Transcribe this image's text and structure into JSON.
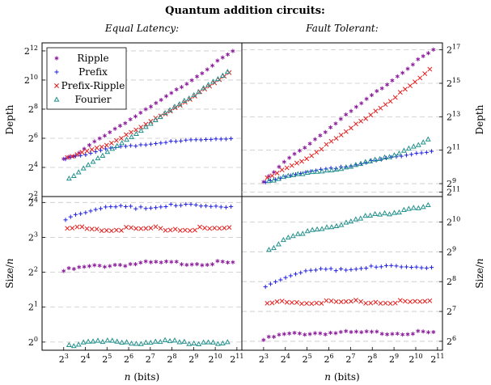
{
  "title": "Quantum addition circuits:",
  "colors": {
    "Ripple": "#8b1a9b",
    "Prefix": "#1f1fe0",
    "Prefix-Ripple": "#e51c1c",
    "Fourier": "#22908c",
    "grid": "#c8c8c8"
  },
  "chart_data": [
    {
      "type": "scatter",
      "panel": "equal-latency-depth",
      "subtitle": "Equal Latency:",
      "xlabel": "",
      "ylabel": "Depth",
      "xscale": "log2",
      "yscale": "log2",
      "xlim": [
        4,
        2400
      ],
      "ylim": [
        4,
        6000
      ],
      "yticks": [
        {
          "v": 4,
          "l": "2^2"
        },
        {
          "v": 16,
          "l": "2^4"
        },
        {
          "v": 64,
          "l": "2^6"
        },
        {
          "v": 256,
          "l": "2^8"
        },
        {
          "v": 1024,
          "l": "2^10"
        },
        {
          "v": 4096,
          "l": "2^12"
        }
      ],
      "legend": "top-left",
      "series": [
        {
          "name": "Ripple",
          "marker": "star",
          "x": [
            8,
            12,
            16,
            32,
            64,
            128,
            256,
            512,
            1024,
            1800
          ],
          "y": [
            24,
            28,
            40,
            80,
            150,
            280,
            550,
            1100,
            2300,
            4000
          ]
        },
        {
          "name": "Prefix",
          "marker": "plus",
          "x": [
            8,
            12,
            16,
            32,
            64,
            128,
            256,
            512,
            1024,
            1800
          ],
          "y": [
            24,
            28,
            30,
            38,
            44,
            50,
            54,
            58,
            62,
            64
          ]
        },
        {
          "name": "Prefix-Ripple",
          "marker": "cross",
          "x": [
            8,
            12,
            16,
            32,
            64,
            128,
            256,
            512,
            1024,
            1800
          ],
          "y": [
            24,
            28,
            34,
            48,
            78,
            140,
            250,
            470,
            900,
            1600
          ]
        },
        {
          "name": "Fourier",
          "marker": "triangle",
          "x": [
            8,
            12,
            16,
            32,
            64,
            128,
            256,
            512,
            1024,
            1800
          ],
          "y": [
            8,
            12,
            16,
            32,
            64,
            128,
            256,
            512,
            1024,
            1800
          ]
        }
      ]
    },
    {
      "type": "scatter",
      "panel": "fault-tolerant-depth",
      "subtitle": "Fault Tolerant:",
      "xlabel": "",
      "ylabel": "Depth",
      "xscale": "log2",
      "yscale": "log2",
      "xlim": [
        4,
        2400
      ],
      "ylim": [
        300,
        175000
      ],
      "yticks": [
        {
          "v": 512,
          "l": "2^9"
        },
        {
          "v": 2048,
          "l": "2^11"
        },
        {
          "v": 8192,
          "l": "2^13"
        },
        {
          "v": 32768,
          "l": "2^15"
        },
        {
          "v": 131072,
          "l": "2^17"
        }
      ],
      "series": [
        {
          "name": "Ripple",
          "marker": "star",
          "x": [
            8,
            12,
            16,
            32,
            64,
            128,
            256,
            512,
            1024,
            1800
          ],
          "y": [
            550,
            900,
            1300,
            2500,
            5000,
            10000,
            20000,
            40000,
            80000,
            130000
          ]
        },
        {
          "name": "Prefix",
          "marker": "plus",
          "x": [
            8,
            12,
            16,
            32,
            64,
            128,
            256,
            512,
            1024,
            1800
          ],
          "y": [
            550,
            620,
            700,
            800,
            950,
            1100,
            1300,
            1500,
            1800,
            2000
          ]
        },
        {
          "name": "Prefix-Ripple",
          "marker": "cross",
          "x": [
            8,
            12,
            16,
            32,
            64,
            128,
            256,
            512,
            1024,
            1800
          ],
          "y": [
            600,
            750,
            950,
            1500,
            2700,
            5000,
            9500,
            18000,
            35000,
            65000
          ]
        },
        {
          "name": "Fourier",
          "marker": "triangle",
          "x": [
            8,
            12,
            16,
            32,
            64,
            128,
            256,
            512,
            1024,
            1800
          ],
          "y": [
            550,
            620,
            680,
            780,
            900,
            1050,
            1300,
            1700,
            2500,
            3600
          ]
        }
      ]
    },
    {
      "type": "scatter",
      "panel": "equal-latency-size",
      "xlabel": "n (bits)",
      "ylabel": "Size/n",
      "xscale": "log2",
      "yscale": "log2",
      "xlim": [
        4,
        2400
      ],
      "ylim": [
        0.85,
        18
      ],
      "yticks": [
        {
          "v": 1,
          "l": "2^0"
        },
        {
          "v": 2,
          "l": "2^1"
        },
        {
          "v": 4,
          "l": "2^2"
        },
        {
          "v": 8,
          "l": "2^3"
        },
        {
          "v": 16,
          "l": "2^4"
        }
      ],
      "xticks": [
        {
          "v": 8,
          "l": "2^3"
        },
        {
          "v": 16,
          "l": "2^4"
        },
        {
          "v": 32,
          "l": "2^5"
        },
        {
          "v": 64,
          "l": "2^6"
        },
        {
          "v": 128,
          "l": "2^7"
        },
        {
          "v": 256,
          "l": "2^8"
        },
        {
          "v": 512,
          "l": "2^9"
        },
        {
          "v": 1024,
          "l": "2^10"
        },
        {
          "v": 2048,
          "l": "2^11"
        }
      ],
      "series": [
        {
          "name": "Ripple",
          "marker": "star",
          "x": [
            8,
            12,
            16,
            32,
            64,
            128,
            256,
            512,
            1024,
            1800
          ],
          "y": [
            4.1,
            4.3,
            4.4,
            4.6,
            4.7,
            4.8,
            4.8,
            4.8,
            4.8,
            4.8
          ]
        },
        {
          "name": "Prefix",
          "marker": "plus",
          "x": [
            8,
            12,
            16,
            32,
            64,
            128,
            256,
            512,
            1024,
            1800
          ],
          "y": [
            11.5,
            12.8,
            13.5,
            14.2,
            14.6,
            14.8,
            14.9,
            14.9,
            14.9,
            14.9
          ]
        },
        {
          "name": "Prefix-Ripple",
          "marker": "cross",
          "x": [
            8,
            12,
            16,
            32,
            64,
            128,
            256,
            512,
            1024,
            1800
          ],
          "y": [
            9.3,
            9.5,
            9.5,
            9.5,
            9.5,
            9.5,
            9.5,
            9.5,
            9.5,
            9.5
          ]
        },
        {
          "name": "Fourier",
          "marker": "triangle",
          "x": [
            8,
            12,
            16,
            32,
            64,
            128,
            256,
            512,
            1024,
            1800
          ],
          "y": [
            0.94,
            0.96,
            0.98,
            1.0,
            1.0,
            1.0,
            1.0,
            1.0,
            1.0,
            1.0
          ]
        }
      ]
    },
    {
      "type": "scatter",
      "panel": "fault-tolerant-size",
      "xlabel": "n (bits)",
      "ylabel": "Size/n",
      "xscale": "log2",
      "yscale": "log2",
      "xlim": [
        4,
        2400
      ],
      "ylim": [
        52,
        1850
      ],
      "yticks": [
        {
          "v": 64,
          "l": "2^6"
        },
        {
          "v": 128,
          "l": "2^7"
        },
        {
          "v": 256,
          "l": "2^8"
        },
        {
          "v": 512,
          "l": "2^9"
        },
        {
          "v": 1024,
          "l": "2^10"
        },
        {
          "v": 2048,
          "l": "2^11"
        }
      ],
      "xticks": [
        {
          "v": 8,
          "l": "2^3"
        },
        {
          "v": 16,
          "l": "2^4"
        },
        {
          "v": 32,
          "l": "2^5"
        },
        {
          "v": 64,
          "l": "2^6"
        },
        {
          "v": 128,
          "l": "2^7"
        },
        {
          "v": 256,
          "l": "2^8"
        },
        {
          "v": 512,
          "l": "2^9"
        },
        {
          "v": 1024,
          "l": "2^10"
        },
        {
          "v": 2048,
          "l": "2^11"
        }
      ],
      "series": [
        {
          "name": "Ripple",
          "marker": "star",
          "x": [
            8,
            12,
            16,
            32,
            64,
            128,
            256,
            512,
            1024,
            1800
          ],
          "y": [
            66,
            72,
            75,
            77,
            78,
            78,
            78,
            78,
            78,
            78
          ]
        },
        {
          "name": "Prefix",
          "marker": "plus",
          "x": [
            8,
            12,
            16,
            32,
            64,
            128,
            256,
            512,
            1024,
            1800
          ],
          "y": [
            230,
            260,
            290,
            320,
            340,
            350,
            355,
            360,
            360,
            360
          ]
        },
        {
          "name": "Prefix-Ripple",
          "marker": "cross",
          "x": [
            8,
            12,
            16,
            32,
            64,
            128,
            256,
            512,
            1024,
            1800
          ],
          "y": [
            150,
            155,
            158,
            160,
            160,
            160,
            160,
            160,
            160,
            160
          ]
        },
        {
          "name": "Fourier",
          "marker": "triangle",
          "x": [
            8,
            12,
            16,
            32,
            64,
            128,
            256,
            512,
            1024,
            1800
          ],
          "y": [
            500,
            600,
            680,
            800,
            920,
            1050,
            1180,
            1300,
            1450,
            1550
          ]
        }
      ]
    }
  ]
}
